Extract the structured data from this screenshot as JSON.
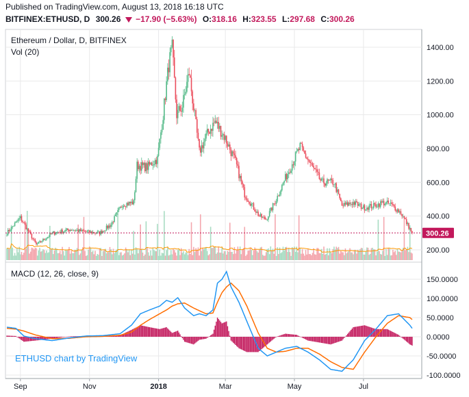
{
  "header": {
    "published": "Published on TradingView.com, August 13, 2018 16:18 UTC",
    "symbol": "BITFINEX:ETHUSD, D",
    "last": "300.26",
    "change": "−17.90 (−5.63%)",
    "o_label": "O:",
    "o": "318.16",
    "h_label": "H:",
    "h": "323.55",
    "l_label": "L:",
    "l": "297.68",
    "c_label": "C:",
    "c": "300.26"
  },
  "colors": {
    "up": "#53b987",
    "down": "#eb4d5c",
    "vol_up": "#a9dcc3",
    "vol_down": "#f4a7ae",
    "vol_ma": "#ff9800",
    "macd_line": "#2196f3",
    "signal_line": "#ff6d00",
    "histogram": "#c2185b",
    "price_line": "#c2185b",
    "grid": "#e9e9ea"
  },
  "chart_data": [
    {
      "type": "candlestick",
      "title": "Ethereum / Dollar, D, BITFINEX",
      "volume_label": "Vol (20)",
      "ylim": [
        140,
        1480
      ],
      "yticks": [
        200,
        400,
        600,
        800,
        1000,
        1200,
        1400
      ],
      "ytick_labels": [
        "200.00",
        "400.00",
        "600.00",
        "800.00",
        "1000.00",
        "1200.00",
        "1400.00"
      ],
      "price_label": "300.26",
      "last_price": 300.26,
      "x_labels": [
        "Sep",
        "Nov",
        "2018",
        "Mar",
        "May",
        "Jul"
      ],
      "close_anchors": [
        [
          "2017-08-20",
          300
        ],
        [
          "2017-09-01",
          390
        ],
        [
          "2017-09-15",
          230
        ],
        [
          "2017-09-30",
          300
        ],
        [
          "2017-10-15",
          320
        ],
        [
          "2017-10-31",
          305
        ],
        [
          "2017-11-10",
          300
        ],
        [
          "2017-11-20",
          350
        ],
        [
          "2017-11-30",
          470
        ],
        [
          "2017-12-10",
          480
        ],
        [
          "2017-12-13",
          700
        ],
        [
          "2017-12-22",
          690
        ],
        [
          "2017-12-31",
          740
        ],
        [
          "2018-01-05",
          1000
        ],
        [
          "2018-01-10",
          1300
        ],
        [
          "2018-01-13",
          1390
        ],
        [
          "2018-01-17",
          1000
        ],
        [
          "2018-01-22",
          1050
        ],
        [
          "2018-01-28",
          1250
        ],
        [
          "2018-02-06",
          780
        ],
        [
          "2018-02-14",
          900
        ],
        [
          "2018-02-20",
          960
        ],
        [
          "2018-03-01",
          860
        ],
        [
          "2018-03-10",
          720
        ],
        [
          "2018-03-18",
          530
        ],
        [
          "2018-03-31",
          400
        ],
        [
          "2018-04-06",
          380
        ],
        [
          "2018-04-15",
          500
        ],
        [
          "2018-04-24",
          640
        ],
        [
          "2018-05-06",
          810
        ],
        [
          "2018-05-16",
          700
        ],
        [
          "2018-05-25",
          600
        ],
        [
          "2018-06-05",
          600
        ],
        [
          "2018-06-12",
          460
        ],
        [
          "2018-06-22",
          480
        ],
        [
          "2018-07-01",
          450
        ],
        [
          "2018-07-10",
          460
        ],
        [
          "2018-07-18",
          480
        ],
        [
          "2018-07-25",
          470
        ],
        [
          "2018-08-03",
          420
        ],
        [
          "2018-08-13",
          300.26
        ]
      ]
    },
    {
      "type": "line",
      "title": "MACD (12, 26, close, 9)",
      "ylim": [
        -105,
        180
      ],
      "yticks": [
        -100,
        -50,
        0,
        50,
        100,
        150
      ],
      "ytick_labels": [
        "-100.0000",
        "-50.0000",
        "0.0000",
        "50.0000",
        "100.0000",
        "150.0000"
      ],
      "watermark": "ETHUSD chart by TradingView",
      "series": [
        {
          "key": "macd",
          "values": [
            [
              0,
              25
            ],
            [
              8,
              22
            ],
            [
              15,
              2
            ],
            [
              25,
              -5
            ],
            [
              40,
              -10
            ],
            [
              55,
              -3
            ],
            [
              70,
              2
            ],
            [
              85,
              3
            ],
            [
              100,
              8
            ],
            [
              110,
              30
            ],
            [
              118,
              60
            ],
            [
              126,
              70
            ],
            [
              135,
              80
            ],
            [
              141,
              95
            ],
            [
              146,
              90
            ],
            [
              151,
              102
            ],
            [
              157,
              75
            ],
            [
              165,
              55
            ],
            [
              170,
              60
            ],
            [
              176,
              55
            ],
            [
              182,
              70
            ],
            [
              186,
              140
            ],
            [
              190,
              150
            ],
            [
              194,
              170
            ],
            [
              198,
              130
            ],
            [
              205,
              90
            ],
            [
              212,
              40
            ],
            [
              222,
              -30
            ],
            [
              230,
              -50
            ],
            [
              238,
              -40
            ],
            [
              246,
              -30
            ],
            [
              256,
              -25
            ],
            [
              266,
              -40
            ],
            [
              276,
              -60
            ],
            [
              286,
              -85
            ],
            [
              296,
              -90
            ],
            [
              306,
              -60
            ],
            [
              316,
              -10
            ],
            [
              326,
              20
            ],
            [
              336,
              55
            ],
            [
              346,
              60
            ],
            [
              356,
              30
            ],
            [
              366,
              -10
            ],
            [
              376,
              -25
            ],
            [
              386,
              -30
            ],
            [
              396,
              -35
            ],
            [
              406,
              -30
            ],
            [
              416,
              -25
            ],
            [
              426,
              -15
            ],
            [
              436,
              -5
            ],
            [
              446,
              0
            ],
            [
              456,
              -10
            ],
            [
              462,
              -25
            ]
          ]
        },
        {
          "key": "signal",
          "values": [
            [
              0,
              22
            ],
            [
              8,
              20
            ],
            [
              15,
              15
            ],
            [
              25,
              5
            ],
            [
              40,
              -5
            ],
            [
              55,
              -4
            ],
            [
              70,
              0
            ],
            [
              85,
              1
            ],
            [
              100,
              4
            ],
            [
              110,
              12
            ],
            [
              118,
              30
            ],
            [
              126,
              45
            ],
            [
              135,
              60
            ],
            [
              141,
              70
            ],
            [
              146,
              80
            ],
            [
              151,
              86
            ],
            [
              157,
              88
            ],
            [
              165,
              75
            ],
            [
              170,
              68
            ],
            [
              176,
              60
            ],
            [
              182,
              62
            ],
            [
              186,
              90
            ],
            [
              190,
              115
            ],
            [
              194,
              130
            ],
            [
              198,
              140
            ],
            [
              205,
              120
            ],
            [
              212,
              80
            ],
            [
              222,
              10
            ],
            [
              230,
              -30
            ],
            [
              238,
              -40
            ],
            [
              246,
              -38
            ],
            [
              256,
              -30
            ],
            [
              266,
              -30
            ],
            [
              276,
              -45
            ],
            [
              286,
              -65
            ],
            [
              296,
              -80
            ],
            [
              306,
              -85
            ],
            [
              316,
              -40
            ],
            [
              326,
              0
            ],
            [
              336,
              35
            ],
            [
              346,
              55
            ],
            [
              356,
              50
            ],
            [
              366,
              25
            ],
            [
              376,
              -5
            ],
            [
              386,
              -20
            ],
            [
              396,
              -28
            ],
            [
              406,
              -30
            ],
            [
              416,
              -28
            ],
            [
              426,
              -22
            ],
            [
              436,
              -12
            ],
            [
              446,
              -5
            ],
            [
              456,
              -5
            ],
            [
              462,
              -12
            ]
          ]
        }
      ]
    }
  ]
}
